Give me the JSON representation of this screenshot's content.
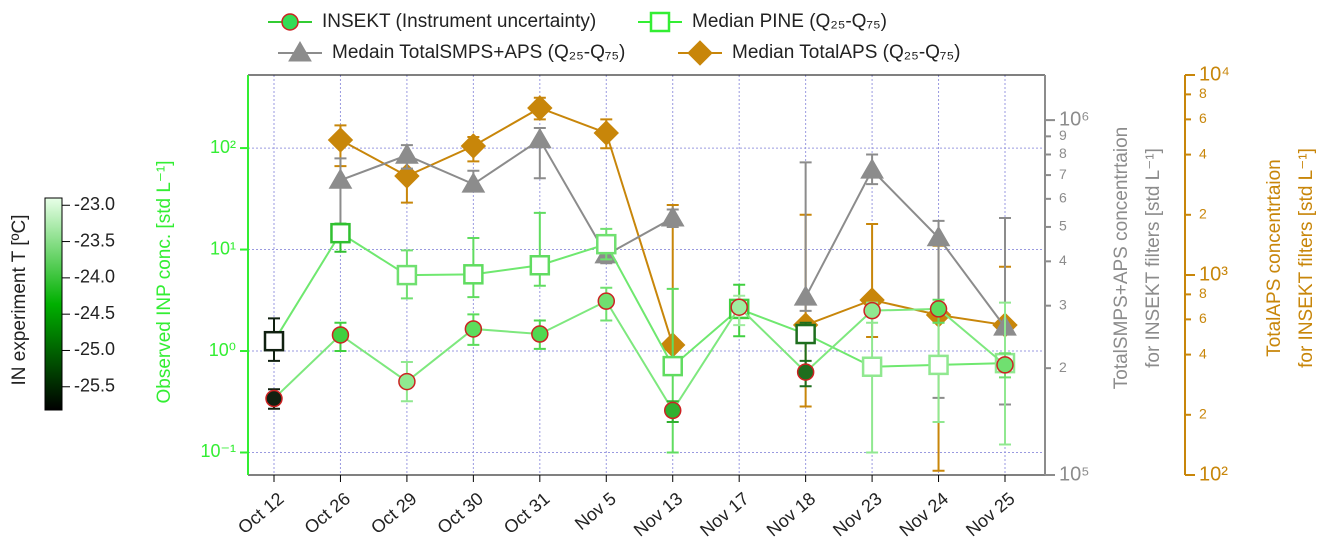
{
  "chart_data": {
    "type": "line",
    "categories": [
      "Oct 12",
      "Oct 26",
      "Oct 29",
      "Oct 30",
      "Oct 31",
      "Nov 5",
      "Nov 13",
      "Nov 17",
      "Nov 18",
      "Nov 23",
      "Nov 24",
      "Nov 25"
    ],
    "y_title": "Observed INP conc. [std L⁻¹]",
    "y2_title": [
      "TotalSMPS+APS concentrtaion",
      "for INSEKT filters [std L⁻¹]"
    ],
    "y3_title": [
      "TotalAPS concentrtaion",
      "for INSEKT filters [std L⁻¹]"
    ],
    "log_scale": true,
    "grid": true,
    "ylim": [
      0.06,
      525
    ],
    "yticks": [
      {
        "value": 0.1,
        "label": "10⁻¹"
      },
      {
        "value": 1,
        "label": "10⁰"
      },
      {
        "value": 10,
        "label": "10¹"
      },
      {
        "value": 100,
        "label": "10²"
      }
    ],
    "y2lim": [
      100000,
      1340000
    ],
    "y2ticks": [
      {
        "value": 100000,
        "label": "10⁵"
      },
      {
        "value": 200000,
        "label": "2"
      },
      {
        "value": 300000,
        "label": "3"
      },
      {
        "value": 400000,
        "label": "4"
      },
      {
        "value": 500000,
        "label": "5"
      },
      {
        "value": 600000,
        "label": "6"
      },
      {
        "value": 700000,
        "label": "7"
      },
      {
        "value": 800000,
        "label": "8"
      },
      {
        "value": 900000,
        "label": "9"
      },
      {
        "value": 1000000,
        "label": "10⁶"
      }
    ],
    "y3lim": [
      100,
      10000
    ],
    "y3ticks": [
      {
        "value": 100,
        "label": "10²"
      },
      {
        "value": 200,
        "label": "2"
      },
      {
        "value": 400,
        "label": "4"
      },
      {
        "value": 600,
        "label": "6"
      },
      {
        "value": 800,
        "label": "8"
      },
      {
        "value": 1000,
        "label": "10³"
      },
      {
        "value": 2000,
        "label": "2"
      },
      {
        "value": 4000,
        "label": "4"
      },
      {
        "value": 6000,
        "label": "6"
      },
      {
        "value": 8000,
        "label": "8"
      },
      {
        "value": 10000,
        "label": "10⁴"
      }
    ],
    "series": [
      {
        "name": "INSEKT (Instrument uncertainty)",
        "marker": "circle",
        "axis": "y",
        "color": "#7ee87e",
        "edge": "#cc2222",
        "point_colors": [
          "#102010",
          "#40d040",
          "#90e890",
          "#5cdc5c",
          "#50d850",
          "#70e070",
          "#30b030",
          "#a0eca0",
          "#1e6e1e",
          "#90e890",
          "#60dc60",
          "#70e070"
        ],
        "values": [
          0.34,
          1.44,
          0.5,
          1.65,
          1.47,
          3.1,
          0.26,
          2.7,
          0.62,
          2.5,
          2.6,
          0.73
        ],
        "lower": [
          0.27,
          1.0,
          0.32,
          1.15,
          1.05,
          2.0,
          0.2,
          1.8,
          0.45,
          1.9,
          1.9,
          0.55
        ],
        "upper": [
          0.42,
          1.9,
          0.78,
          2.3,
          2.0,
          4.2,
          0.32,
          3.5,
          0.8,
          3.0,
          3.2,
          0.95
        ]
      },
      {
        "name": "Median PINE (Q₂₅-Q₇₅)",
        "marker": "square",
        "axis": "y",
        "color": "#6fe86f",
        "point_colors": [
          "#102010",
          "#30c030",
          "#70e070",
          "#60dc60",
          "#60dc60",
          "#70e070",
          "#60dc60",
          "#40d040",
          "#1e6e1e",
          "#90e890",
          "#90e890",
          "#90e890"
        ],
        "values": [
          1.25,
          14.5,
          5.6,
          5.7,
          7.0,
          11.3,
          0.71,
          2.6,
          1.47,
          0.7,
          0.73,
          0.76
        ],
        "lower": [
          0.8,
          9.5,
          3.3,
          3.4,
          4.4,
          8.0,
          0.1,
          1.4,
          0.6,
          0.1,
          0.2,
          0.12
        ],
        "upper": [
          2.1,
          18,
          9.8,
          13,
          23,
          16,
          4.1,
          4.5,
          1.9,
          2.8,
          3.0,
          3.0
        ]
      },
      {
        "name": "Medain TotalSMPS+APS (Q₂₅-Q₇₅)",
        "marker": "triangle",
        "axis": "y2",
        "color": "#8c8c8c",
        "values": [
          null,
          677000,
          796000,
          660000,
          880000,
          417000,
          530000,
          null,
          317000,
          723000,
          466000,
          261000
        ],
        "lower": [
          null,
          500000,
          730000,
          630000,
          686000,
          395000,
          500000,
          null,
          290000,
          660000,
          165000,
          158000
        ],
        "upper": [
          null,
          780000,
          850000,
          720000,
          950000,
          460000,
          560000,
          null,
          760000,
          800000,
          520000,
          530000
        ]
      },
      {
        "name": "Median TotalAPS (Q₂₅-Q₇₅)",
        "marker": "diamond",
        "axis": "y3",
        "color": "#c8860a",
        "values": [
          null,
          4730,
          3126,
          4415,
          6840,
          5130,
          447,
          null,
          562,
          750,
          631,
          562
        ],
        "lower": [
          null,
          3500,
          2300,
          3700,
          6000,
          4300,
          380,
          null,
          220,
          490,
          105,
          360
        ],
        "upper": [
          null,
          5600,
          3800,
          4900,
          7700,
          6000,
          2240,
          null,
          2000,
          1800,
          1400,
          1100
        ]
      }
    ],
    "colorbar": {
      "title": "IN experiment T [ºC]",
      "lim": [
        -25.82,
        -22.9
      ],
      "ticks": [
        -23.0,
        -23.5,
        -24.0,
        -24.5,
        -25.0,
        -25.5
      ],
      "colors": [
        "#000000",
        "#00b000",
        "#e8ffe8"
      ]
    }
  }
}
